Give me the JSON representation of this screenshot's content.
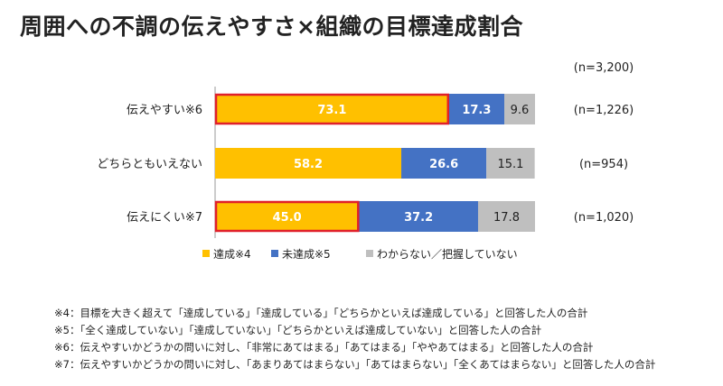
{
  "title": "周囲への不調の伝えやすさ×組織の目標達成割合",
  "chart_data": {
    "type": "bar",
    "stacked": true,
    "orientation": "horizontal",
    "total_n": "(n=3,200)",
    "categories": [
      "伝えやすい※6",
      "どちらともいえない",
      "伝えにくい※7"
    ],
    "n_labels": [
      "(n=1,226)",
      "(n=954)",
      "(n=1,020)"
    ],
    "series": [
      {
        "name": "達成※4",
        "color": "#FFC000",
        "values": [
          73.1,
          58.2,
          45.0
        ],
        "labels": [
          "73.1",
          "58.2",
          "45.0"
        ]
      },
      {
        "name": "未達成※5",
        "color": "#4472C4",
        "values": [
          17.3,
          26.6,
          37.2
        ],
        "labels": [
          "17.3",
          "26.6",
          "37.2"
        ]
      },
      {
        "name": "わからない／把握していない",
        "color": "#BFBFBF",
        "values": [
          9.6,
          15.1,
          17.8
        ],
        "labels": [
          "9.6",
          "15.1",
          "17.8"
        ]
      }
    ],
    "highlighted": [
      {
        "series": 0,
        "category": 0,
        "color": "#E0202A"
      },
      {
        "series": 0,
        "category": 2,
        "color": "#E0202A"
      }
    ],
    "xlim": [
      0,
      100
    ],
    "legend_position": "bottom-left",
    "grid": false
  },
  "notes": [
    "※4：目標を大きく超えて「達成している」「達成している」「どちらかといえば達成している」と回答した人の合計",
    "※5：「全く達成していない」「達成していない」「どちらかといえば達成していない」と回答した人の合計",
    "※6：伝えやすいかどうかの問いに対し、「非常にあてはまる」「あてはまる」「ややあてはまる」と回答した人の合計",
    "※7：伝えやすいかどうかの問いに対し、「あまりあてはまらない」「あてはまらない」「全くあてはまらない」と回答した人の合計"
  ]
}
